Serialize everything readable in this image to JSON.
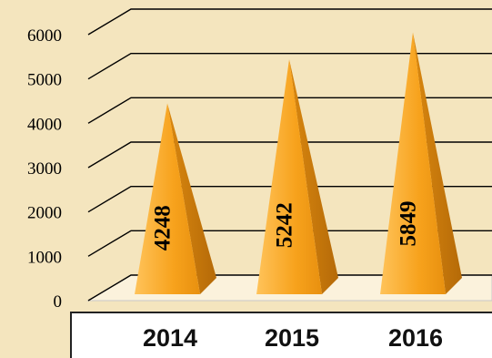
{
  "chart_data": {
    "type": "bar",
    "bar_shape": "pyramid",
    "categories": [
      "2014",
      "2015",
      "2016"
    ],
    "values": [
      4248,
      5242,
      5849
    ],
    "y_ticks": [
      "0",
      "1000",
      "2000",
      "3000",
      "4000",
      "5000",
      "6000"
    ],
    "ylim": [
      0,
      6000
    ],
    "grid": true,
    "legend": "none",
    "title": "",
    "xlabel": "",
    "ylabel": ""
  },
  "colors": {
    "background": "#f4e5be",
    "bar_front": "#f7a21c",
    "bar_side": "#c9780c",
    "bar_highlight": "#ffd27a",
    "gridline": "#000000",
    "category_band": "#ffffff"
  }
}
